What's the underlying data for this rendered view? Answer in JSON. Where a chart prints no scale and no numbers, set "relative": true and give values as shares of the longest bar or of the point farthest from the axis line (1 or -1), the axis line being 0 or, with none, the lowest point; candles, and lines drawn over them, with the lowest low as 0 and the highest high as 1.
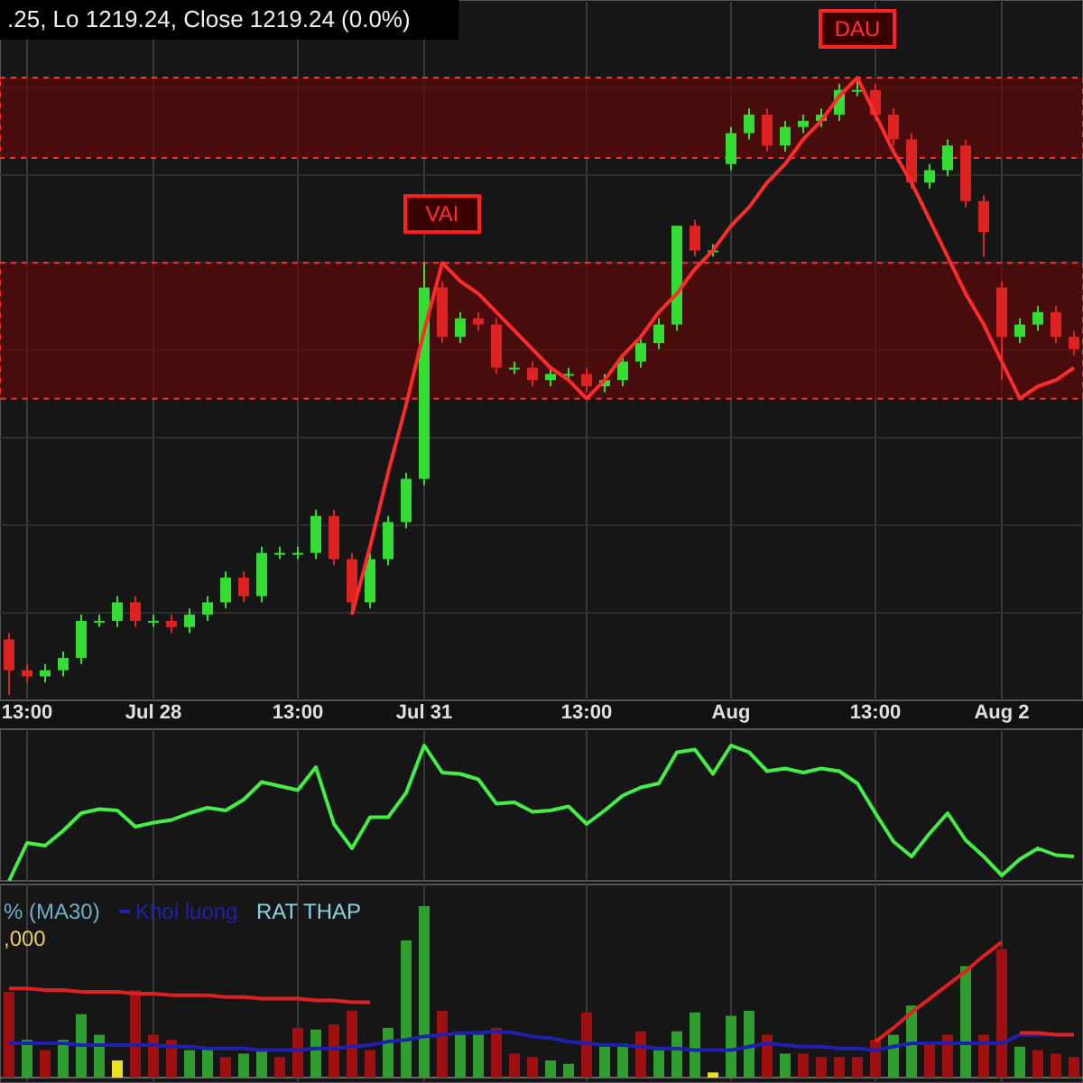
{
  "chart_data": [
    {
      "type": "candlestick",
      "relative": true,
      "grid": true,
      "categories": [
        null,
        "13:00",
        null,
        null,
        null,
        null,
        null,
        null,
        "Jul 28",
        null,
        null,
        null,
        null,
        null,
        null,
        null,
        "13:00",
        null,
        null,
        null,
        null,
        null,
        null,
        "Jul 31",
        null,
        null,
        null,
        null,
        null,
        null,
        null,
        null,
        "13:00",
        null,
        null,
        null,
        null,
        null,
        null,
        null,
        "Aug",
        null,
        null,
        null,
        null,
        null,
        null,
        null,
        "13:00",
        null,
        null,
        null,
        null,
        null,
        null,
        "Aug 2",
        null,
        null,
        null,
        null
      ],
      "ohlc": [
        [
          0.09,
          0.1,
          0,
          0.04
        ],
        [
          0.04,
          0.05,
          0.02,
          0.03
        ],
        [
          0.03,
          0.05,
          0.02,
          0.04
        ],
        [
          0.04,
          0.07,
          0.03,
          0.06
        ],
        [
          0.06,
          0.13,
          0.05,
          0.12
        ],
        [
          0.12,
          0.13,
          0.11,
          0.12
        ],
        [
          0.12,
          0.16,
          0.11,
          0.15
        ],
        [
          0.15,
          0.16,
          0.11,
          0.12
        ],
        [
          0.12,
          0.13,
          0.11,
          0.12
        ],
        [
          0.12,
          0.13,
          0.1,
          0.11
        ],
        [
          0.11,
          0.14,
          0.1,
          0.13
        ],
        [
          0.13,
          0.16,
          0.12,
          0.15
        ],
        [
          0.15,
          0.2,
          0.14,
          0.19
        ],
        [
          0.19,
          0.2,
          0.15,
          0.16
        ],
        [
          0.16,
          0.24,
          0.15,
          0.23
        ],
        [
          0.23,
          0.24,
          0.22,
          0.23
        ],
        [
          0.23,
          0.24,
          0.22,
          0.23
        ],
        [
          0.23,
          0.3,
          0.22,
          0.29
        ],
        [
          0.29,
          0.3,
          0.21,
          0.22
        ],
        [
          0.22,
          0.23,
          0.13,
          0.15
        ],
        [
          0.15,
          0.23,
          0.14,
          0.22
        ],
        [
          0.22,
          0.29,
          0.21,
          0.28
        ],
        [
          0.28,
          0.36,
          0.27,
          0.35
        ],
        [
          0.35,
          0.7,
          0.34,
          0.66
        ],
        [
          0.66,
          0.67,
          0.57,
          0.58
        ],
        [
          0.58,
          0.62,
          0.57,
          0.61
        ],
        [
          0.61,
          0.62,
          0.59,
          0.6
        ],
        [
          0.6,
          0.61,
          0.52,
          0.53
        ],
        [
          0.53,
          0.54,
          0.52,
          0.53
        ],
        [
          0.53,
          0.54,
          0.5,
          0.51
        ],
        [
          0.51,
          0.53,
          0.5,
          0.52
        ],
        [
          0.52,
          0.53,
          0.51,
          0.52
        ],
        [
          0.52,
          0.53,
          0.49,
          0.5
        ],
        [
          0.5,
          0.52,
          0.49,
          0.51
        ],
        [
          0.51,
          0.55,
          0.5,
          0.54
        ],
        [
          0.54,
          0.58,
          0.53,
          0.57
        ],
        [
          0.57,
          0.61,
          0.56,
          0.6
        ],
        [
          0.6,
          0.76,
          0.59,
          0.76
        ],
        [
          0.76,
          0.77,
          0.71,
          0.72
        ],
        [
          0.72,
          0.73,
          0.71,
          0.72
        ],
        [
          0.86,
          0.92,
          0.85,
          0.91
        ],
        [
          0.91,
          0.95,
          0.9,
          0.94
        ],
        [
          0.94,
          0.95,
          0.88,
          0.89
        ],
        [
          0.89,
          0.93,
          0.88,
          0.92
        ],
        [
          0.92,
          0.94,
          0.91,
          0.93
        ],
        [
          0.93,
          0.95,
          0.92,
          0.94
        ],
        [
          0.94,
          0.99,
          0.93,
          0.98
        ],
        [
          0.98,
          1,
          0.97,
          0.98
        ],
        [
          0.98,
          0.99,
          0.93,
          0.94
        ],
        [
          0.94,
          0.95,
          0.89,
          0.9
        ],
        [
          0.9,
          0.91,
          0.82,
          0.83
        ],
        [
          0.83,
          0.86,
          0.82,
          0.85
        ],
        [
          0.85,
          0.9,
          0.84,
          0.89
        ],
        [
          0.89,
          0.9,
          0.79,
          0.8
        ],
        [
          0.8,
          0.81,
          0.71,
          0.75
        ],
        [
          0.66,
          0.67,
          0.51,
          0.58
        ],
        [
          0.58,
          0.61,
          0.57,
          0.6
        ],
        [
          0.6,
          0.63,
          0.59,
          0.62
        ],
        [
          0.62,
          0.63,
          0.57,
          0.58
        ],
        [
          0.58,
          0.59,
          0.55,
          0.56
        ]
      ],
      "bands": [
        {
          "axis": "y",
          "from": 0.48,
          "to": 0.7,
          "color": "#5a0a0a"
        },
        {
          "axis": "y",
          "from": 0.87,
          "to": 1.0,
          "color": "#5a0a0a"
        }
      ],
      "series": [
        {
          "type": "line",
          "color": "#ff2a2a",
          "values": [
            null,
            null,
            null,
            null,
            null,
            null,
            null,
            null,
            null,
            null,
            null,
            null,
            null,
            null,
            null,
            null,
            null,
            null,
            null,
            0.13,
            0.24,
            0.36,
            0.47,
            0.59,
            0.7,
            0.67,
            0.65,
            0.62,
            0.59,
            0.56,
            0.53,
            0.51,
            0.48,
            0.51,
            0.55,
            0.58,
            0.62,
            0.65,
            0.69,
            0.72,
            0.76,
            0.79,
            0.83,
            0.86,
            0.9,
            0.93,
            0.97,
            1.0,
            0.94,
            0.88,
            0.83,
            0.77,
            0.71,
            0.65,
            0.6,
            0.54,
            0.48,
            0.5,
            0.51,
            0.53
          ]
        }
      ],
      "annotations": [
        ".25, Lo 1219.24, Close 1219.24 (0.0%)",
        {
          "text": "VAI",
          "y": 0.7
        },
        {
          "text": "DAU",
          "y": 1.0
        }
      ]
    },
    {
      "type": "line",
      "relative": true,
      "grid": "x",
      "categories": [
        null,
        null,
        null,
        null,
        null,
        null,
        null,
        null,
        null,
        null,
        null,
        null,
        null,
        null,
        null,
        null,
        null,
        null,
        null,
        null,
        null,
        null,
        null,
        null,
        null,
        null,
        null,
        null,
        null,
        null,
        null,
        null,
        null,
        null,
        null,
        null,
        null,
        null,
        null,
        null,
        null,
        null,
        null,
        null,
        null,
        null,
        null,
        null,
        null,
        null,
        null,
        null,
        null,
        null,
        null,
        null,
        null,
        null,
        null,
        null
      ],
      "series": [
        {
          "color": "#44ee44",
          "values": [
            0,
            0.28,
            0.26,
            0.37,
            0.5,
            0.53,
            0.52,
            0.4,
            0.43,
            0.45,
            0.5,
            0.54,
            0.52,
            0.6,
            0.73,
            0.7,
            0.67,
            0.84,
            0.42,
            0.24,
            0.47,
            0.47,
            0.65,
            1.0,
            0.8,
            0.79,
            0.75,
            0.57,
            0.58,
            0.51,
            0.52,
            0.55,
            0.42,
            0.52,
            0.63,
            0.69,
            0.72,
            0.95,
            0.97,
            0.79,
            1.0,
            0.95,
            0.81,
            0.83,
            0.8,
            0.83,
            0.81,
            0.72,
            0.5,
            0.29,
            0.18,
            0.35,
            0.5,
            0.3,
            0.18,
            0.04,
            0.16,
            0.24,
            0.19,
            0.18
          ]
        }
      ]
    },
    {
      "type": "bar",
      "relative": true,
      "grid": "x",
      "legend": "top left",
      "categories": [
        null,
        null,
        null,
        null,
        null,
        null,
        null,
        null,
        null,
        null,
        null,
        null,
        null,
        null,
        null,
        null,
        null,
        null,
        null,
        null,
        null,
        null,
        null,
        null,
        null,
        null,
        null,
        null,
        null,
        null,
        null,
        null,
        null,
        null,
        null,
        null,
        null,
        null,
        null,
        null,
        null,
        null,
        null,
        null,
        null,
        null,
        null,
        null,
        null,
        null,
        null,
        null,
        null,
        null,
        null,
        null,
        null,
        null,
        null,
        null
      ],
      "values": [
        0.5,
        0.22,
        0.16,
        0.22,
        0.37,
        0.25,
        0.1,
        0.51,
        0.25,
        0.22,
        0.16,
        0.17,
        0.12,
        0.14,
        0.16,
        0.12,
        0.29,
        0.28,
        0.31,
        0.39,
        0.16,
        0.29,
        0.8,
        1.0,
        0.39,
        0.25,
        0.25,
        0.29,
        0.14,
        0.12,
        0.1,
        0.08,
        0.38,
        0.18,
        0.2,
        0.27,
        0.16,
        0.27,
        0.38,
        0.03,
        0.36,
        0.39,
        0.25,
        0.14,
        0.14,
        0.12,
        0.12,
        0.12,
        0.22,
        0.25,
        0.42,
        0.2,
        0.25,
        0.65,
        0.25,
        0.75,
        0.18,
        0.16,
        0.14,
        0.12
      ],
      "colors": [
        "#a01010",
        "#2e9e2e",
        "#a01010",
        "#2e9e2e",
        "#2e9e2e",
        "#2e9e2e",
        "#e8e020",
        "#a01010",
        "#a01010",
        "#a01010",
        "#2e9e2e",
        "#2e9e2e",
        "#a01010",
        "#2e9e2e",
        "#2e9e2e",
        "#a01010",
        "#a01010",
        "#2e9e2e",
        "#a01010",
        "#a01010",
        "#a01010",
        "#2e9e2e",
        "#2e9e2e",
        "#2e9e2e",
        "#a01010",
        "#2e9e2e",
        "#2e9e2e",
        "#a01010",
        "#a01010",
        "#a01010",
        "#2e9e2e",
        "#2e9e2e",
        "#a01010",
        "#2e9e2e",
        "#2e9e2e",
        "#a01010",
        "#2e9e2e",
        "#2e9e2e",
        "#2e9e2e",
        "#e8e020",
        "#2e9e2e",
        "#2e9e2e",
        "#a01010",
        "#2e9e2e",
        "#a01010",
        "#a01010",
        "#a01010",
        "#a01010",
        "#a01010",
        "#2e9e2e",
        "#2e9e2e",
        "#a01010",
        "#a01010",
        "#2e9e2e",
        "#a01010",
        "#a01010",
        "#2e9e2e",
        "#a01010",
        "#a01010",
        "#a01010"
      ],
      "series": [
        {
          "type": "line",
          "name": "Khoi luong",
          "color": "#2020b0",
          "values": [
            0.2,
            0.2,
            0.2,
            0.2,
            0.19,
            0.19,
            0.19,
            0.19,
            0.19,
            0.18,
            0.18,
            0.17,
            0.17,
            0.17,
            0.16,
            0.16,
            0.16,
            0.17,
            0.17,
            0.18,
            0.19,
            0.21,
            0.22,
            0.24,
            0.25,
            0.26,
            0.26,
            0.27,
            0.26,
            0.24,
            0.23,
            0.21,
            0.2,
            0.19,
            0.19,
            0.18,
            0.17,
            0.17,
            0.16,
            0.16,
            0.16,
            0.18,
            0.2,
            0.19,
            0.18,
            0.18,
            0.17,
            0.17,
            0.16,
            0.18,
            0.2,
            0.2,
            0.2,
            0.2,
            0.2,
            0.2,
            0.25,
            0.25,
            0.25,
            null
          ]
        },
        {
          "type": "line",
          "color": "#e02020",
          "values": [
            0.52,
            0.52,
            0.51,
            0.51,
            0.5,
            0.5,
            0.5,
            0.49,
            0.49,
            0.48,
            0.48,
            0.48,
            0.47,
            0.47,
            0.46,
            0.46,
            0.46,
            0.45,
            0.45,
            0.44,
            0.44,
            null,
            null,
            null,
            null,
            null,
            null,
            null,
            null,
            null,
            null,
            null,
            null,
            null,
            null,
            null,
            null,
            null,
            null,
            null,
            null,
            null,
            null,
            null,
            null,
            null,
            null,
            null,
            null,
            null,
            null,
            null,
            null,
            null,
            null,
            null,
            null,
            null,
            null,
            null
          ]
        },
        {
          "type": "line",
          "color": "#e02020",
          "values": [
            null,
            null,
            null,
            null,
            null,
            null,
            null,
            null,
            null,
            null,
            null,
            null,
            null,
            null,
            null,
            null,
            null,
            null,
            null,
            null,
            null,
            null,
            null,
            null,
            null,
            null,
            null,
            null,
            null,
            null,
            null,
            null,
            null,
            null,
            null,
            null,
            null,
            null,
            null,
            null,
            null,
            null,
            null,
            null,
            null,
            null,
            null,
            null,
            0.21,
            0.29,
            0.38,
            0.46,
            0.54,
            0.62,
            0.71,
            0.79,
            null,
            null,
            null,
            null
          ]
        },
        {
          "type": "line",
          "color": "#e02020",
          "values": [
            null,
            null,
            null,
            null,
            null,
            null,
            null,
            null,
            null,
            null,
            null,
            null,
            null,
            null,
            null,
            null,
            null,
            null,
            null,
            null,
            null,
            null,
            null,
            null,
            null,
            null,
            null,
            null,
            null,
            null,
            null,
            null,
            null,
            null,
            null,
            null,
            null,
            null,
            null,
            null,
            null,
            null,
            null,
            null,
            null,
            null,
            null,
            null,
            null,
            null,
            null,
            null,
            null,
            null,
            null,
            null,
            0.26,
            0.26,
            0.25,
            0.25
          ]
        }
      ],
      "annotations": [
        "% (MA30)",
        "RAT THAP",
        ",000"
      ]
    }
  ]
}
